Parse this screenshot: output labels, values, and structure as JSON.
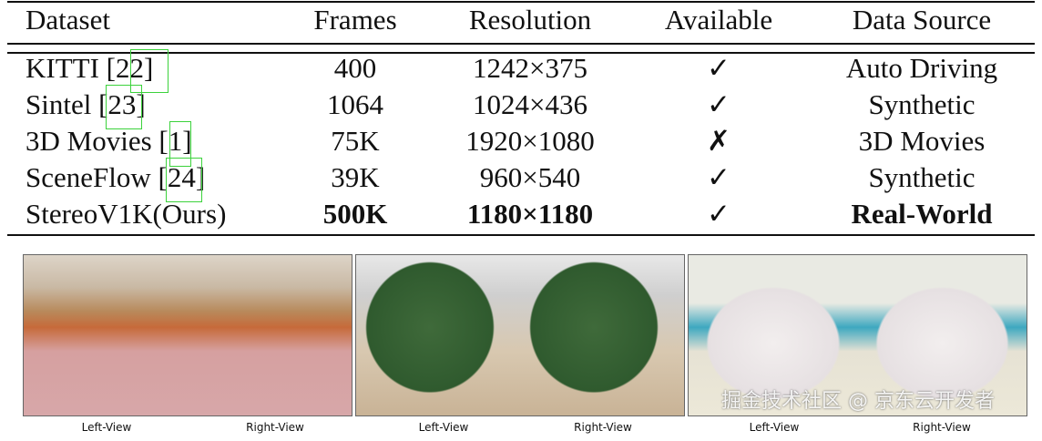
{
  "table": {
    "headers": [
      "Dataset",
      "Frames",
      "Resolution",
      "Available",
      "Data Source"
    ],
    "rows": [
      {
        "dataset": "KITTI",
        "cite": "[22]",
        "frames": "400",
        "resolution": "1242×375",
        "available": "✓",
        "source": "Auto Driving"
      },
      {
        "dataset": "Sintel",
        "cite": "[23]",
        "frames": "1064",
        "resolution": "1024×436",
        "available": "✓",
        "source": "Synthetic"
      },
      {
        "dataset": "3D Movies",
        "cite": "[1]",
        "frames": "75K",
        "resolution": "1920×1080",
        "available": "✗",
        "source": "3D Movies"
      },
      {
        "dataset": "SceneFlow",
        "cite": "[24]",
        "frames": "39K",
        "resolution": "960×540",
        "available": "✓",
        "source": "Synthetic"
      },
      {
        "dataset": "StereoV1K(Ours)",
        "cite": "",
        "frames": "500K",
        "resolution": "1180×1180",
        "available": "✓",
        "source": "Real-World"
      }
    ]
  },
  "figure": {
    "panels": [
      {
        "scene": "paper-animal-figures",
        "left_label": "Left-View",
        "right_label": "Right-View"
      },
      {
        "scene": "green-bush",
        "left_label": "Left-View",
        "right_label": "Right-View"
      },
      {
        "scene": "white-cat",
        "left_label": "Left-View",
        "right_label": "Right-View"
      }
    ]
  },
  "watermark": "掘金技术社区 @ 京东云开发者"
}
